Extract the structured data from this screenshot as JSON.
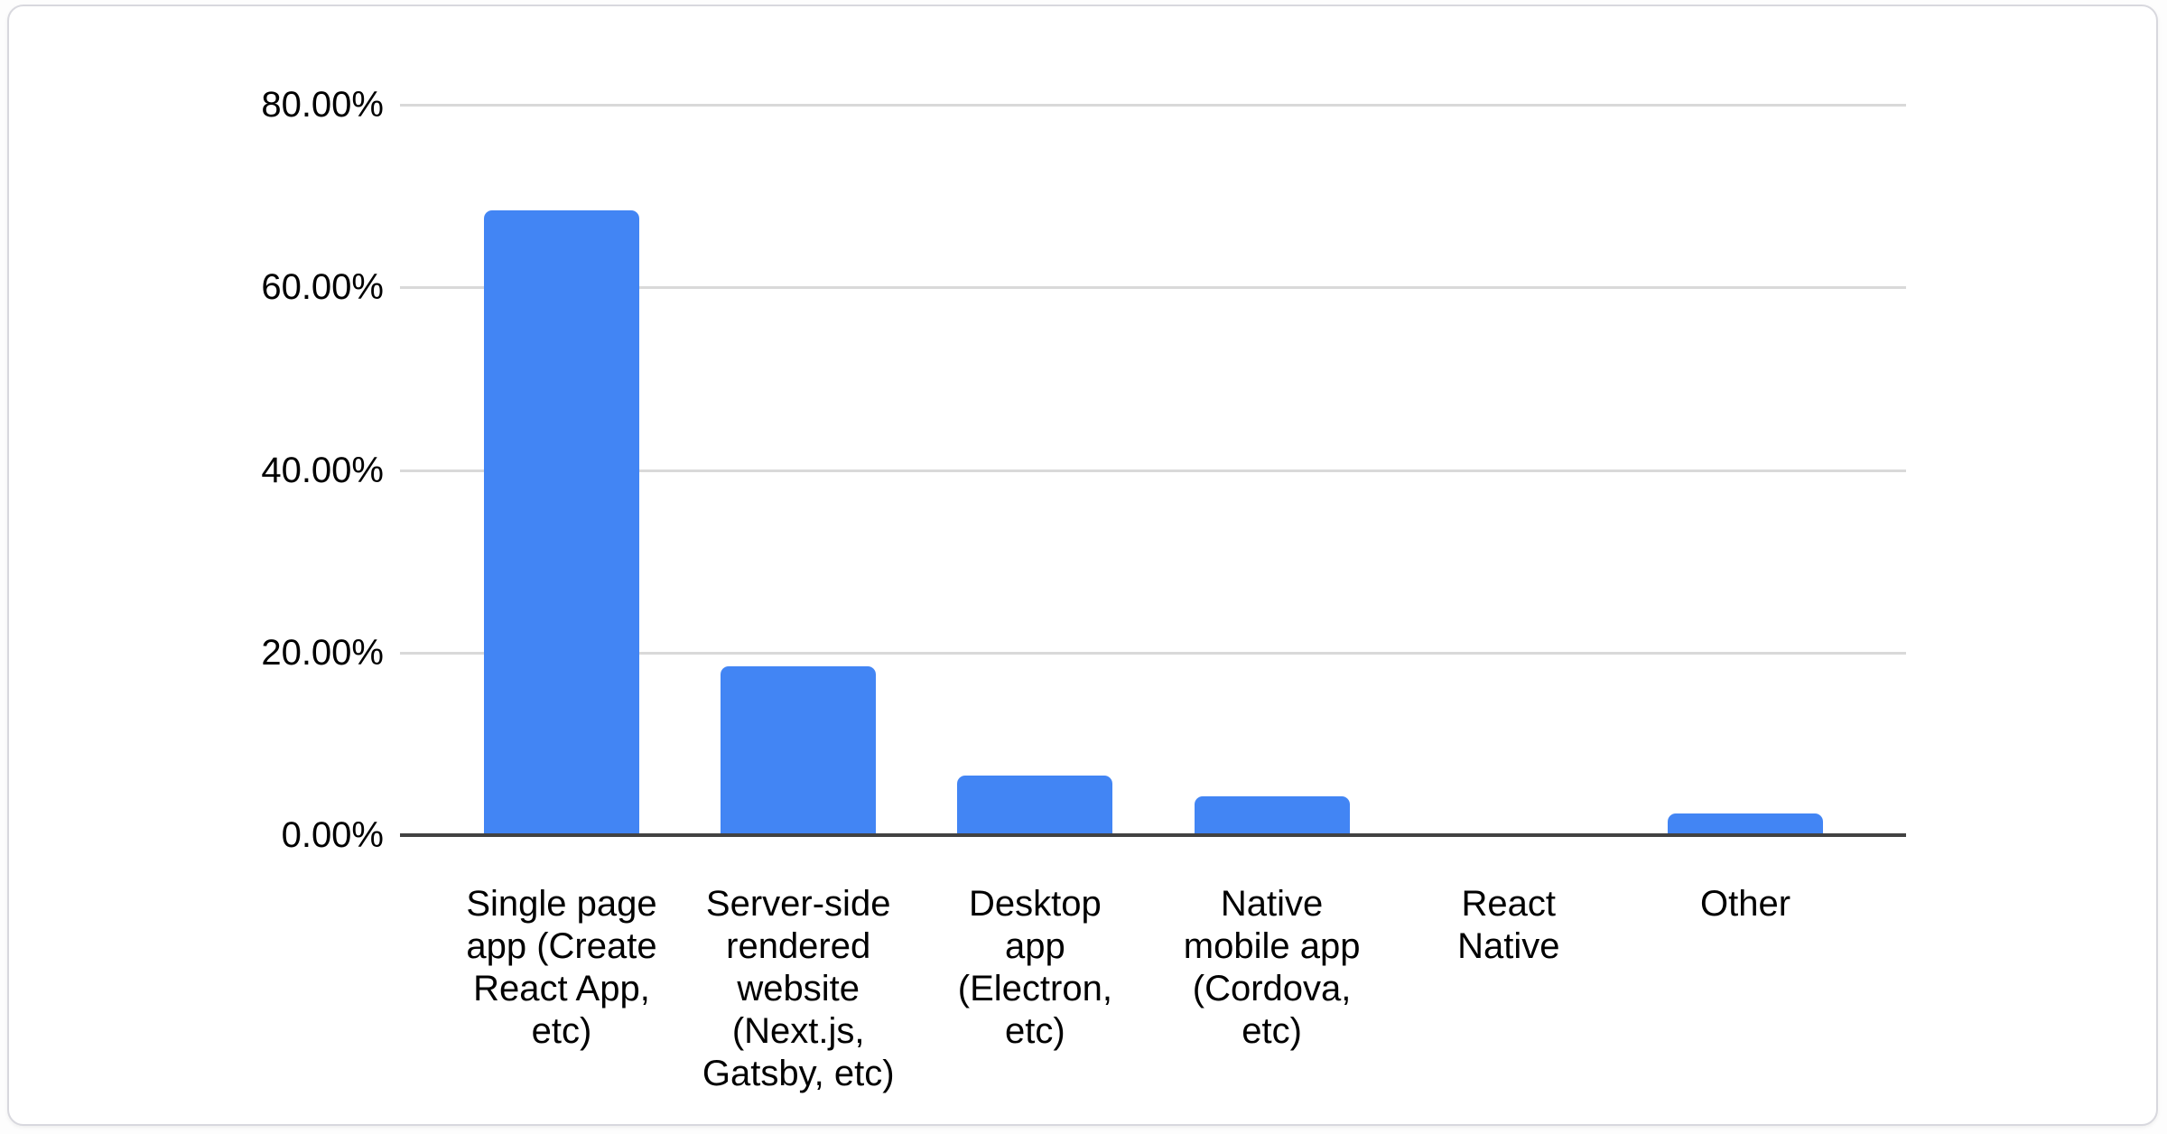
{
  "chart_data": {
    "type": "bar",
    "title": "",
    "xlabel": "",
    "ylabel": "",
    "categories": [
      "Single page app (Create React App, etc)",
      "Server-side rendered website (Next.js, Gatsby, etc)",
      "Desktop app (Electron, etc)",
      "Native mobile app (Cordova, etc)",
      "React Native",
      "Other"
    ],
    "category_wrapped": [
      "Single page\napp (Create\nReact App,\netc)",
      "Server-side\nrendered\nwebsite\n(Next.js,\nGatsby, etc)",
      "Desktop\napp\n(Electron,\netc)",
      "Native\nmobile app\n(Cordova,\netc)",
      "React\nNative",
      "Other"
    ],
    "values": [
      68.4,
      18.5,
      6.5,
      4.3,
      0,
      2.4
    ],
    "value_format": "percent",
    "ylim": [
      0,
      80
    ],
    "y_ticks": [
      {
        "label": "80.00%",
        "value": 80
      },
      {
        "label": "60.00%",
        "value": 60
      },
      {
        "label": "40.00%",
        "value": 40
      },
      {
        "label": "20.00%",
        "value": 20
      },
      {
        "label": "0.00%",
        "value": 0
      }
    ],
    "grid": true,
    "legend": "none",
    "bar_color": "#4285f4",
    "axis_line_color": "#424242",
    "gridline_color": "#d9d9d9",
    "label_color": "#000000",
    "card_background": "#ffffff",
    "card_border_color": "#d8d8de"
  }
}
